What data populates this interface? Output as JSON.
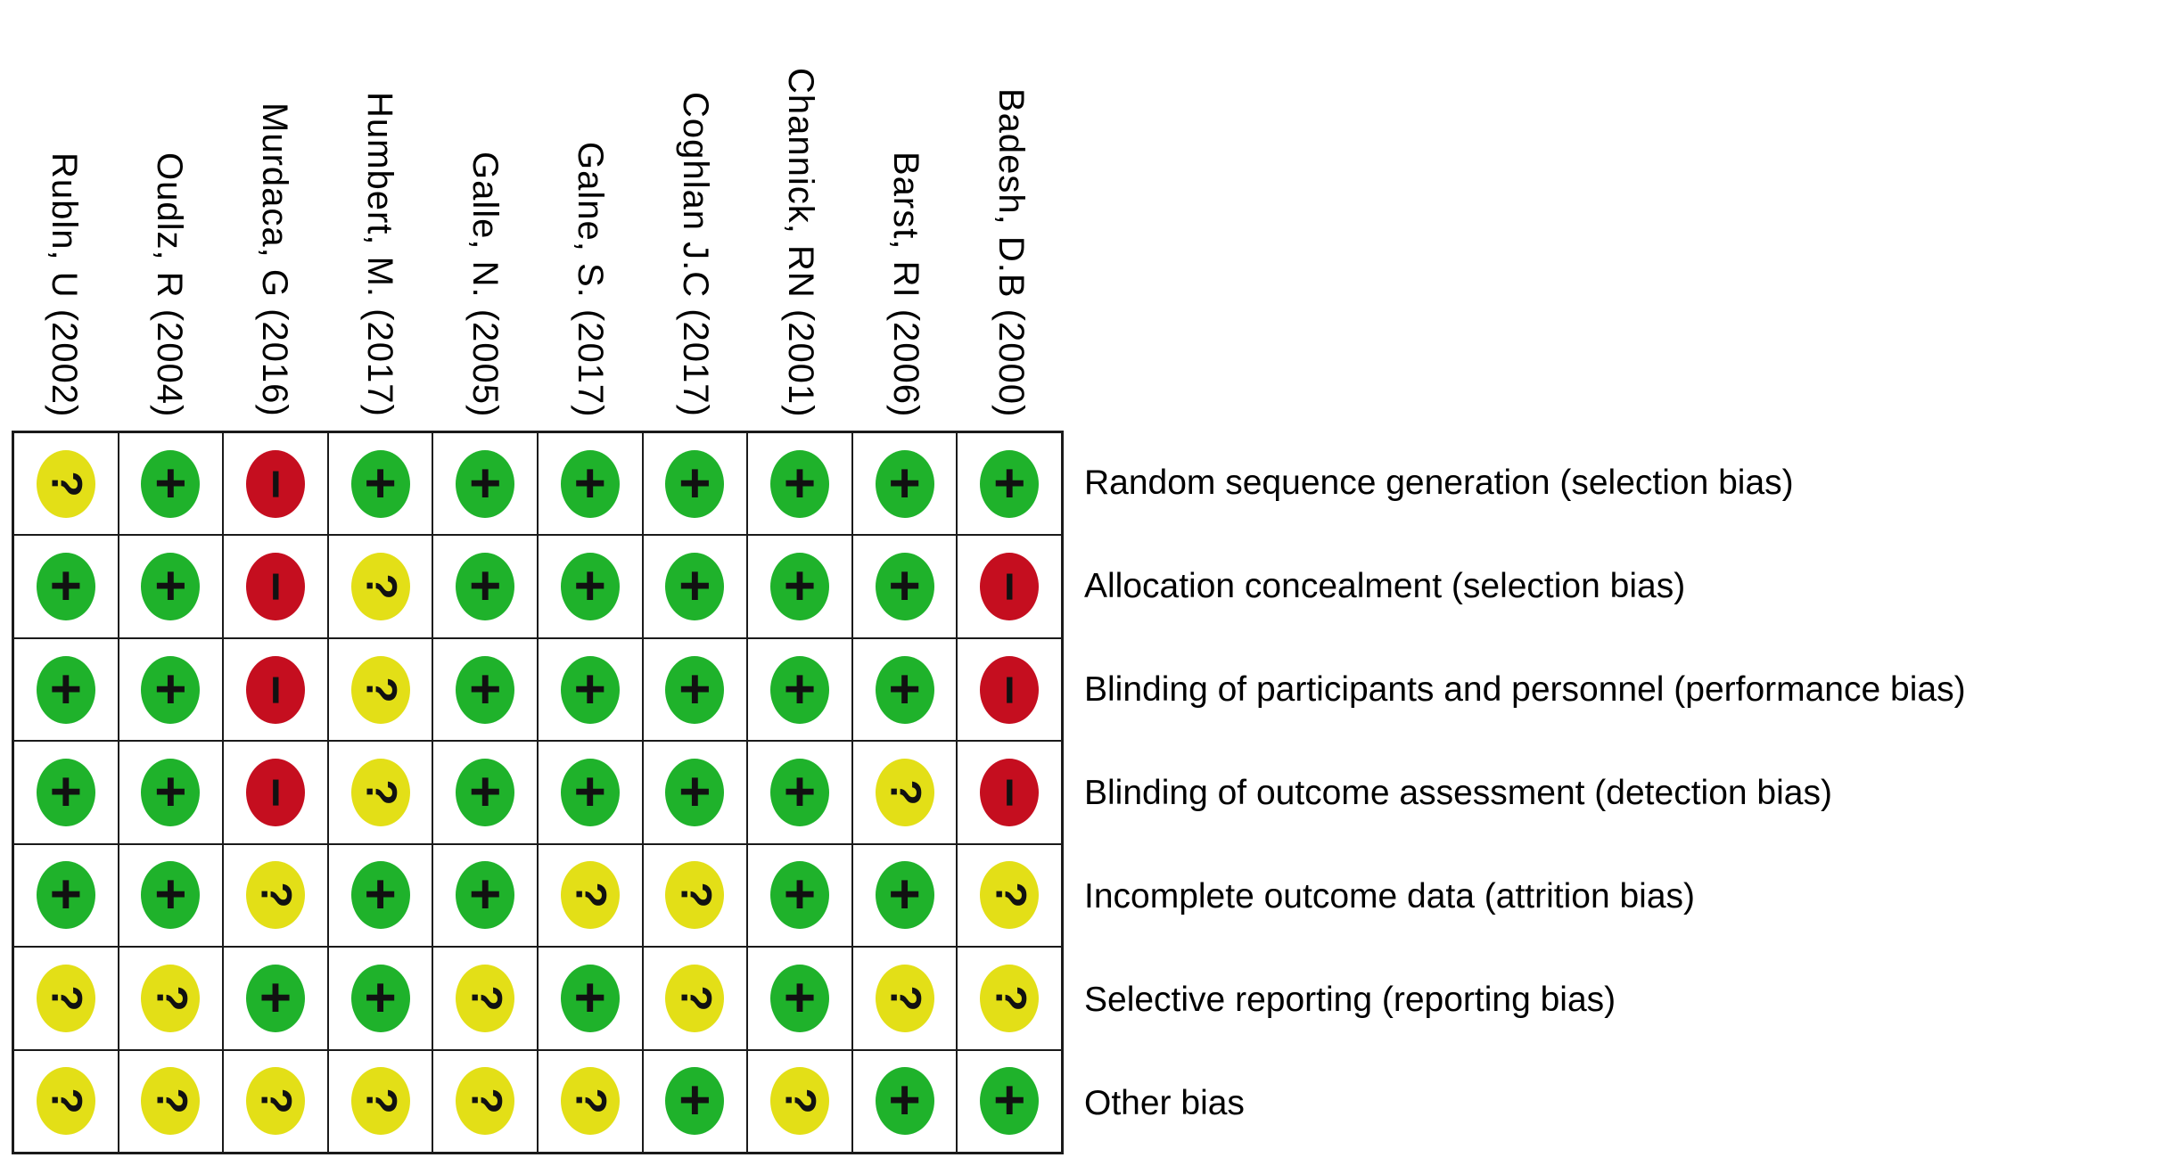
{
  "chart_data": {
    "type": "heatmap",
    "title": "",
    "columns": [
      "Rubln, U (2002)",
      "Oudlz, R (2004)",
      "Murdaca, G (2016)",
      "Humbert, M. (2017)",
      "Galle, N. (2005)",
      "Galne, S. (2017)",
      "Coghlan J.C (2017)",
      "Channick, RN (2001)",
      "Barst, RI (2006)",
      "Badesh, D.B (2000)"
    ],
    "rows": [
      "Random sequence generation (selection bias)",
      "Allocation concealment (selection bias)",
      "Blinding of participants and personnel (performance bias)",
      "Blinding of outcome assessment (detection bias)",
      "Incomplete outcome data (attrition bias)",
      "Selective reporting (reporting bias)",
      "Other bias"
    ],
    "values": [
      [
        "?",
        "+",
        "-",
        "+",
        "+",
        "+",
        "+",
        "+",
        "+",
        "+"
      ],
      [
        "+",
        "+",
        "-",
        "?",
        "+",
        "+",
        "+",
        "+",
        "+",
        "-"
      ],
      [
        "+",
        "+",
        "-",
        "?",
        "+",
        "+",
        "+",
        "+",
        "+",
        "-"
      ],
      [
        "+",
        "+",
        "-",
        "?",
        "+",
        "+",
        "+",
        "+",
        "?",
        "-"
      ],
      [
        "+",
        "+",
        "?",
        "+",
        "+",
        "?",
        "?",
        "+",
        "+",
        "?"
      ],
      [
        "?",
        "?",
        "+",
        "+",
        "?",
        "+",
        "?",
        "+",
        "?",
        "?"
      ],
      [
        "?",
        "?",
        "?",
        "?",
        "?",
        "?",
        "+",
        "?",
        "+",
        "+"
      ]
    ],
    "symbol_colors": {
      "+": "#1FB22B",
      "?": "#E3DF17",
      "-": "#C50E1F"
    },
    "grid_line_color": "#1a1a1a",
    "symbol_color": "#111111",
    "background_color": "#ffffff",
    "layout": {
      "grid_on": true,
      "legend_position": "none",
      "column_header_rotation_deg": 90,
      "row_labels_position": "right"
    }
  }
}
